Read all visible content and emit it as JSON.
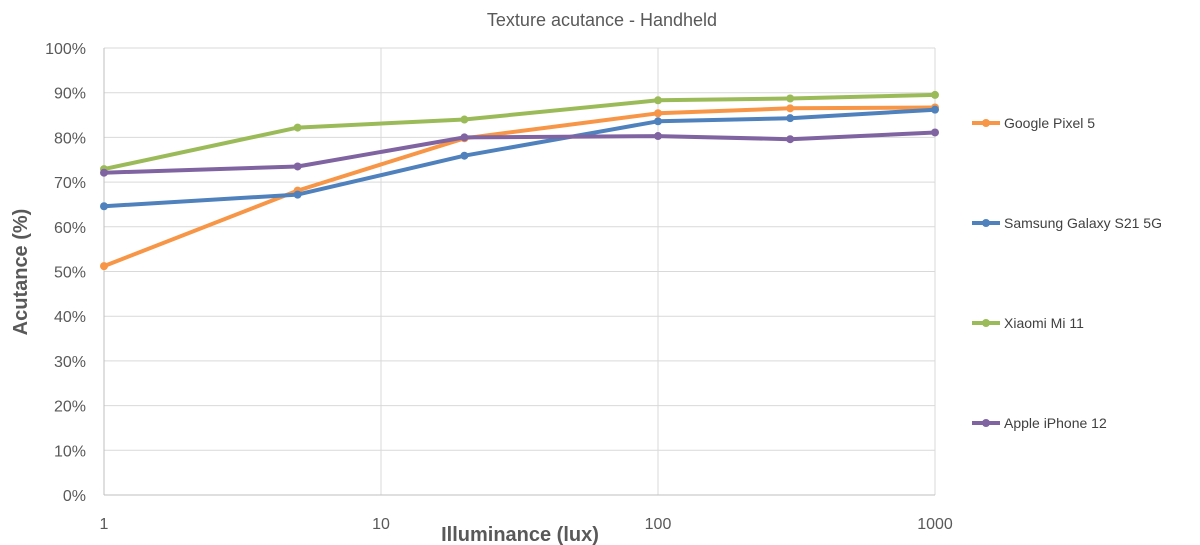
{
  "chart_data": {
    "type": "line",
    "title": "Texture acutance - Handheld",
    "xlabel": "Illuminance (lux)",
    "ylabel": "Acutance (%)",
    "x_scale": "log",
    "xlim": [
      1,
      1000
    ],
    "ylim": [
      0,
      100
    ],
    "x": [
      1,
      5,
      20,
      100,
      300,
      1000
    ],
    "x_ticks": [
      "1",
      "10",
      "100",
      "1000"
    ],
    "y_ticks": [
      "0%",
      "10%",
      "20%",
      "30%",
      "40%",
      "50%",
      "60%",
      "70%",
      "80%",
      "90%",
      "100%"
    ],
    "grid": true,
    "legend_position": "right",
    "series": [
      {
        "name": "Google Pixel 5",
        "color": "#F79646",
        "values": [
          51.2,
          68.1,
          79.8,
          85.4,
          86.5,
          86.7
        ]
      },
      {
        "name": "Samsung Galaxy S21 5G",
        "color": "#4F81BD",
        "values": [
          64.6,
          67.2,
          75.9,
          83.6,
          84.3,
          86.2
        ]
      },
      {
        "name": "Xiaomi Mi 11",
        "color": "#9BBB59",
        "values": [
          72.9,
          82.2,
          84.0,
          88.3,
          88.7,
          89.5
        ]
      },
      {
        "name": "Apple iPhone 12",
        "color": "#8064A2",
        "values": [
          72.1,
          73.5,
          80.0,
          80.3,
          79.6,
          81.1
        ]
      }
    ]
  }
}
